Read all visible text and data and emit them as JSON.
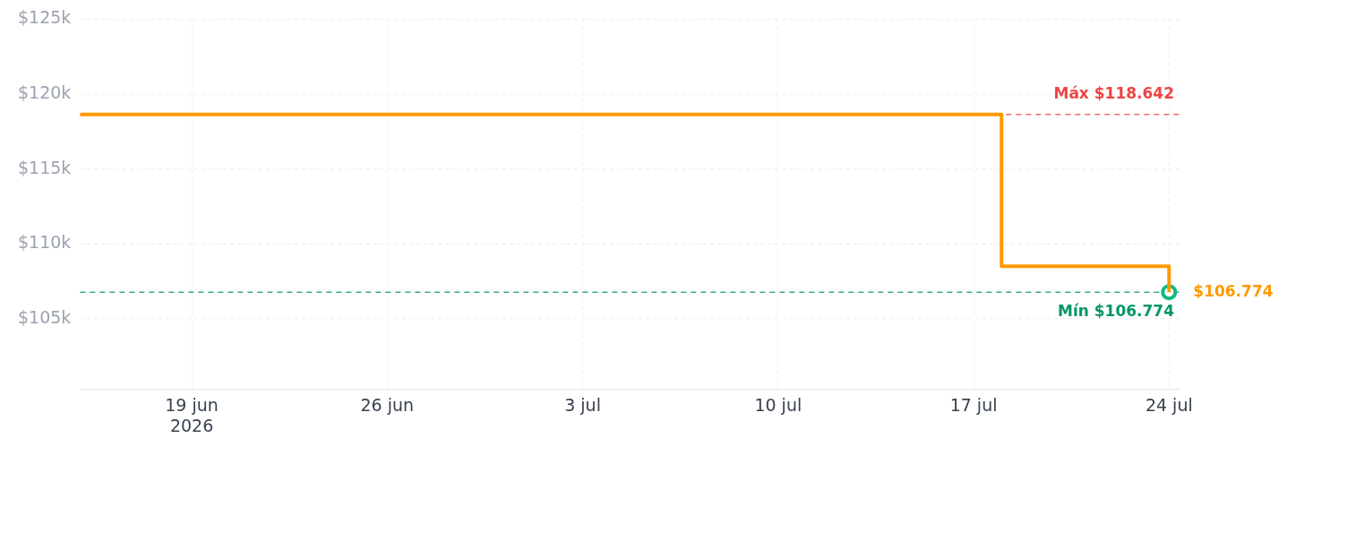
{
  "chart_data": {
    "type": "step",
    "series": [
      {
        "color": "#ff9900",
        "x": [
          "2026-06-15",
          "2026-07-18",
          "2026-07-24"
        ],
        "values": [
          118.642,
          108.5,
          106.774
        ],
        "value_labels": [
          null,
          null,
          "$106.774"
        ],
        "marker": "none"
      },
      {
        "type": "scatter",
        "color": "#10b981",
        "x": [
          "2026-07-24"
        ],
        "values": [
          106.774
        ],
        "marker": "circle"
      }
    ],
    "xlim": [
      "2026-06-15",
      "2026-07-24T09:00"
    ],
    "xticks": [
      {
        "value": "2026-06-19",
        "label": "19 jun\n2026"
      },
      {
        "value": "2026-06-26",
        "label": "26 jun"
      },
      {
        "value": "2026-07-03",
        "label": "3 jul"
      },
      {
        "value": "2026-07-10",
        "label": "10 jul"
      },
      {
        "value": "2026-07-17",
        "label": "17 jul"
      },
      {
        "value": "2026-07-24",
        "label": "24 jul"
      }
    ],
    "ylim": [
      100.3,
      125
    ],
    "yticks": [
      {
        "value": 105,
        "label": "$105k"
      },
      {
        "value": 110,
        "label": "$110k"
      },
      {
        "value": 115,
        "label": "$115k"
      },
      {
        "value": 120,
        "label": "$120k"
      },
      {
        "value": 125,
        "label": "$125k"
      }
    ],
    "ref_lines": [
      {
        "axis": "y",
        "value": 118.642,
        "label": "Máx $118.642",
        "color": "#ef4444",
        "line_style": "dashed"
      },
      {
        "axis": "y",
        "value": 106.774,
        "label": "Mín $106.774",
        "color": "#059669",
        "line_style": "dashed"
      }
    ],
    "grid": true,
    "legend": false
  }
}
